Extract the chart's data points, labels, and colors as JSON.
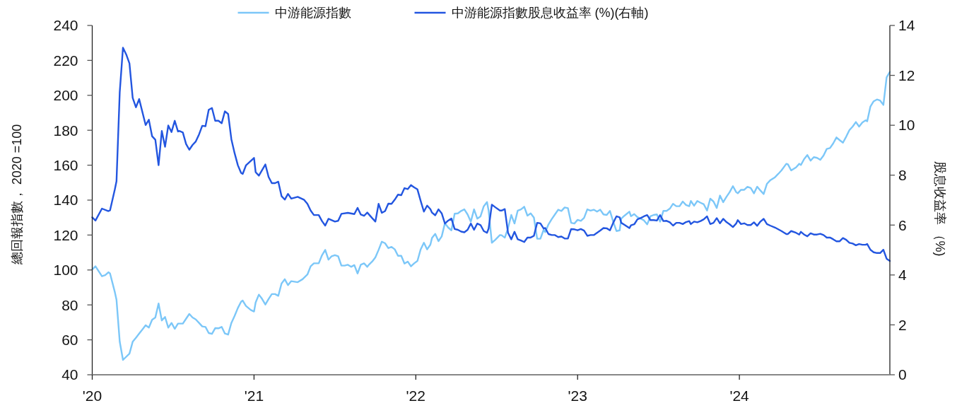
{
  "chart_data": {
    "type": "line",
    "ylabel": "總回報指數， 2020 =100",
    "y2label": "股息收益率 （%)",
    "xlim": [
      2020,
      2024.93
    ],
    "xticks": [
      {
        "value": 2020,
        "label": "'20"
      },
      {
        "value": 2021,
        "label": "'21"
      },
      {
        "value": 2022,
        "label": "'22"
      },
      {
        "value": 2023,
        "label": "'23"
      },
      {
        "value": 2024,
        "label": "'24"
      }
    ],
    "ylim": [
      40,
      240
    ],
    "yticks": [
      40,
      60,
      80,
      100,
      120,
      140,
      160,
      180,
      200,
      220,
      240
    ],
    "y2lim": [
      0,
      14
    ],
    "y2ticks": [
      0,
      2,
      4,
      6,
      8,
      10,
      12,
      14
    ],
    "legend": "top",
    "series": [
      {
        "name": "中游能源指數",
        "color": "#7cc7f8",
        "x": [
          2020.0,
          2020.02,
          2020.06,
          2020.08,
          2020.1,
          2020.11,
          2020.14,
          2020.15,
          2020.17,
          2020.19,
          2020.23,
          2020.25,
          2020.27,
          2020.29,
          2020.31,
          2020.33,
          2020.35,
          2020.37,
          2020.39,
          2020.41,
          2020.43,
          2020.45,
          2020.47,
          2020.49,
          2020.51,
          2020.53,
          2020.56,
          2020.58,
          2020.6,
          2020.62,
          2020.64,
          2020.66,
          2020.68,
          2020.7,
          2020.72,
          2020.74,
          2020.76,
          2020.78,
          2020.8,
          2020.82,
          2020.84,
          2020.86,
          2020.88,
          2020.9,
          2020.92,
          2020.93,
          2020.95,
          2020.98,
          2021.0,
          2021.01,
          2021.03,
          2021.05,
          2021.07,
          2021.09,
          2021.11,
          2021.13,
          2021.15,
          2021.17,
          2021.19,
          2021.21,
          2021.23,
          2021.27,
          2021.3,
          2021.33,
          2021.35,
          2021.37,
          2021.4,
          2021.42,
          2021.44,
          2021.46,
          2021.48,
          2021.5,
          2021.52,
          2021.54,
          2021.56,
          2021.58,
          2021.6,
          2021.62,
          2021.64,
          2021.66,
          2021.68,
          2021.7,
          2021.71,
          2021.73,
          2021.75,
          2021.77,
          2021.79,
          2021.81,
          2021.83,
          2021.85,
          2021.87,
          2021.89,
          2021.91,
          2021.93,
          2021.95,
          2021.97,
          2021.99,
          2022.01,
          2022.03,
          2022.05,
          2022.07,
          2022.09,
          2022.1,
          2022.12,
          2022.14,
          2022.16,
          2022.18,
          2022.2,
          2022.22,
          2022.24,
          2022.26,
          2022.28,
          2022.3,
          2022.32,
          2022.34,
          2022.36,
          2022.38,
          2022.4,
          2022.42,
          2022.44,
          2022.45,
          2022.47,
          2022.49,
          2022.52,
          2022.53,
          2022.55,
          2022.57,
          2022.59,
          2022.61,
          2022.63,
          2022.65,
          2022.67,
          2022.69,
          2022.71,
          2022.73,
          2022.75,
          2022.77,
          2022.79,
          2022.8,
          2022.82,
          2022.84,
          2022.86,
          2022.88,
          2022.9,
          2022.92,
          2022.94,
          2022.96,
          2022.98,
          2023.0,
          2023.02,
          2023.04,
          2023.06,
          2023.08,
          2023.1,
          2023.12,
          2023.14,
          2023.16,
          2023.18,
          2023.2,
          2023.22,
          2023.24,
          2023.26,
          2023.27,
          2023.29,
          2023.32,
          2023.33,
          2023.35,
          2023.37,
          2023.39,
          2023.41,
          2023.43,
          2023.45,
          2023.47,
          2023.49,
          2023.51,
          2023.53,
          2023.55,
          2023.57,
          2023.59,
          2023.61,
          2023.63,
          2023.65,
          2023.67,
          2023.69,
          2023.7,
          2023.72,
          2023.74,
          2023.76,
          2023.78,
          2023.8,
          2023.82,
          2023.84,
          2023.86,
          2023.88,
          2023.9,
          2023.92,
          2023.94,
          2023.96,
          2023.98,
          2023.99,
          2024.01,
          2024.03,
          2024.05,
          2024.07,
          2024.09,
          2024.11,
          2024.13,
          2024.15,
          2024.17,
          2024.19,
          2024.22,
          2024.24,
          2024.26,
          2024.29,
          2024.3,
          2024.32,
          2024.35,
          2024.37,
          2024.38,
          2024.4,
          2024.42,
          2024.44,
          2024.46,
          2024.48,
          2024.5,
          2024.52,
          2024.54,
          2024.56,
          2024.58,
          2024.6,
          2024.62,
          2024.64,
          2024.66,
          2024.68,
          2024.7,
          2024.72,
          2024.74,
          2024.76,
          2024.78,
          2024.79,
          2024.81,
          2024.83,
          2024.85,
          2024.87,
          2024.89,
          2024.91,
          2024.93
        ],
        "values": [
          100.3,
          102.1,
          96.4,
          97.0,
          98.7,
          98.0,
          87.2,
          82.9,
          58.9,
          48.5,
          52.1,
          58.9,
          61.2,
          63.6,
          65.9,
          68.3,
          67.0,
          71.5,
          72.8,
          80.8,
          71.1,
          73.1,
          67.0,
          69.7,
          66.3,
          69.3,
          69.3,
          72.1,
          74.8,
          72.8,
          71.7,
          69.7,
          67.7,
          67.4,
          63.9,
          63.4,
          66.7,
          66.6,
          67.4,
          63.6,
          63.0,
          69.7,
          73.7,
          78.2,
          81.8,
          82.5,
          79.4,
          77.1,
          76.2,
          81.4,
          85.9,
          83.4,
          80.2,
          83.4,
          86.2,
          86.2,
          85.2,
          92.2,
          94.7,
          91.3,
          93.6,
          93.0,
          94.7,
          97.4,
          102.1,
          103.8,
          103.8,
          108.4,
          111.5,
          105.9,
          107.9,
          108.5,
          107.9,
          102.5,
          102.5,
          103.0,
          101.8,
          102.8,
          98.0,
          103.0,
          103.8,
          101.8,
          103.0,
          104.8,
          107.2,
          111.5,
          116.2,
          115.3,
          112.5,
          113.2,
          111.8,
          108.1,
          108.1,
          103.7,
          104.8,
          102.1,
          103.8,
          105.2,
          111.8,
          115.6,
          111.8,
          114.5,
          118.3,
          120.7,
          116.5,
          119.2,
          126.8,
          124.3,
          122.7,
          132.2,
          132.4,
          133.8,
          134.7,
          131.8,
          127.7,
          134.7,
          129.4,
          130.7,
          136.5,
          138.9,
          134.0,
          115.6,
          117.2,
          120.0,
          119.9,
          118.5,
          123.9,
          131.5,
          126.6,
          134.0,
          134.7,
          136.2,
          131.1,
          132.4,
          130.0,
          117.9,
          117.9,
          123.0,
          121.7,
          126.1,
          129.1,
          131.8,
          134.5,
          133.8,
          135.8,
          135.4,
          127.0,
          126.6,
          128.7,
          128.1,
          129.8,
          134.7,
          134.0,
          134.5,
          133.4,
          134.5,
          131.8,
          131.5,
          133.8,
          127.7,
          122.3,
          122.7,
          129.4,
          131.1,
          133.4,
          130.8,
          132.0,
          130.2,
          129.4,
          128.4,
          126.1,
          130.7,
          131.5,
          131.8,
          127.7,
          133.8,
          133.8,
          135.1,
          137.9,
          136.5,
          136.5,
          139.2,
          137.2,
          136.5,
          139.5,
          136.8,
          139.5,
          138.5,
          137.6,
          134.0,
          140.8,
          139.2,
          135.5,
          142.6,
          138.8,
          141.9,
          144.6,
          148.0,
          144.6,
          143.9,
          145.9,
          145.9,
          147.6,
          146.9,
          143.9,
          147.7,
          145.5,
          143.5,
          149.3,
          151.3,
          153.1,
          155.0,
          157.0,
          160.8,
          160.5,
          157.0,
          158.7,
          160.8,
          160.1,
          163.5,
          165.8,
          162.6,
          164.6,
          164.2,
          163.1,
          165.5,
          169.3,
          169.8,
          172.5,
          175.9,
          174.3,
          172.9,
          176.3,
          180.1,
          182.1,
          184.7,
          182.1,
          184.4,
          185.7,
          185.1,
          193.6,
          196.6,
          197.6,
          197.0,
          194.5,
          210.3,
          213.4
        ]
      },
      {
        "name": "中游能源指數股息收益率 (%)(右軸)",
        "color": "#2356e0",
        "axis": "y2",
        "x": [
          2020.0,
          2020.02,
          2020.06,
          2020.1,
          2020.11,
          2020.14,
          2020.15,
          2020.17,
          2020.19,
          2020.21,
          2020.23,
          2020.25,
          2020.27,
          2020.29,
          2020.33,
          2020.35,
          2020.37,
          2020.39,
          2020.41,
          2020.43,
          2020.45,
          2020.47,
          2020.49,
          2020.51,
          2020.53,
          2020.54,
          2020.56,
          2020.58,
          2020.6,
          2020.62,
          2020.64,
          2020.66,
          2020.68,
          2020.7,
          2020.72,
          2020.74,
          2020.76,
          2020.78,
          2020.8,
          2020.82,
          2020.84,
          2020.86,
          2020.88,
          2020.9,
          2020.92,
          2020.93,
          2020.95,
          2021.0,
          2021.01,
          2021.03,
          2021.07,
          2021.09,
          2021.11,
          2021.13,
          2021.15,
          2021.17,
          2021.19,
          2021.21,
          2021.23,
          2021.27,
          2021.31,
          2021.33,
          2021.35,
          2021.37,
          2021.4,
          2021.42,
          2021.44,
          2021.46,
          2021.5,
          2021.52,
          2021.54,
          2021.58,
          2021.62,
          2021.64,
          2021.66,
          2021.68,
          2021.7,
          2021.73,
          2021.75,
          2021.77,
          2021.79,
          2021.81,
          2021.83,
          2021.85,
          2021.87,
          2021.89,
          2021.91,
          2021.93,
          2021.95,
          2021.97,
          2021.99,
          2022.01,
          2022.03,
          2022.05,
          2022.07,
          2022.09,
          2022.1,
          2022.12,
          2022.14,
          2022.16,
          2022.18,
          2022.2,
          2022.22,
          2022.24,
          2022.26,
          2022.28,
          2022.3,
          2022.32,
          2022.34,
          2022.36,
          2022.38,
          2022.4,
          2022.42,
          2022.44,
          2022.45,
          2022.47,
          2022.49,
          2022.52,
          2022.53,
          2022.55,
          2022.57,
          2022.59,
          2022.61,
          2022.63,
          2022.65,
          2022.67,
          2022.69,
          2022.71,
          2022.73,
          2022.75,
          2022.77,
          2022.79,
          2022.8,
          2022.82,
          2022.84,
          2022.86,
          2022.88,
          2022.9,
          2022.92,
          2022.94,
          2022.96,
          2022.98,
          2023.0,
          2023.02,
          2023.04,
          2023.06,
          2023.08,
          2023.1,
          2023.12,
          2023.14,
          2023.16,
          2023.18,
          2023.2,
          2023.22,
          2023.24,
          2023.26,
          2023.27,
          2023.29,
          2023.32,
          2023.33,
          2023.35,
          2023.37,
          2023.39,
          2023.41,
          2023.43,
          2023.45,
          2023.47,
          2023.49,
          2023.51,
          2023.53,
          2023.55,
          2023.57,
          2023.59,
          2023.61,
          2023.63,
          2023.65,
          2023.67,
          2023.69,
          2023.7,
          2023.72,
          2023.74,
          2023.76,
          2023.78,
          2023.8,
          2023.82,
          2023.84,
          2023.86,
          2023.88,
          2023.9,
          2023.92,
          2023.94,
          2023.96,
          2023.98,
          2023.99,
          2024.01,
          2024.03,
          2024.05,
          2024.07,
          2024.09,
          2024.11,
          2024.13,
          2024.15,
          2024.17,
          2024.19,
          2024.22,
          2024.24,
          2024.26,
          2024.29,
          2024.3,
          2024.32,
          2024.35,
          2024.37,
          2024.38,
          2024.4,
          2024.42,
          2024.44,
          2024.46,
          2024.48,
          2024.5,
          2024.52,
          2024.54,
          2024.56,
          2024.58,
          2024.6,
          2024.62,
          2024.64,
          2024.66,
          2024.68,
          2024.7,
          2024.72,
          2024.74,
          2024.76,
          2024.78,
          2024.79,
          2024.81,
          2024.83,
          2024.85,
          2024.87,
          2024.89,
          2024.91,
          2024.93
        ],
        "values": [
          6.31,
          6.18,
          6.66,
          6.56,
          6.59,
          7.44,
          7.76,
          11.33,
          13.11,
          12.84,
          12.48,
          11.1,
          10.72,
          11.05,
          10.01,
          10.22,
          9.56,
          9.42,
          8.4,
          9.77,
          9.14,
          9.99,
          9.73,
          10.18,
          9.75,
          9.77,
          9.71,
          9.25,
          9.02,
          9.21,
          9.35,
          9.63,
          9.98,
          9.96,
          10.62,
          10.69,
          10.18,
          10.18,
          10.08,
          10.56,
          10.45,
          9.44,
          8.88,
          8.4,
          8.09,
          8.05,
          8.39,
          8.69,
          8.12,
          7.98,
          8.43,
          7.93,
          7.68,
          7.68,
          7.74,
          7.16,
          7.02,
          7.25,
          7.06,
          7.13,
          7.01,
          6.85,
          6.58,
          6.4,
          6.4,
          6.16,
          5.98,
          6.25,
          6.14,
          6.17,
          6.45,
          6.49,
          6.44,
          6.69,
          6.42,
          6.37,
          6.5,
          6.28,
          6.14,
          6.85,
          6.49,
          6.56,
          6.86,
          6.85,
          7.02,
          7.22,
          7.2,
          7.48,
          7.44,
          7.6,
          7.51,
          7.43,
          6.97,
          6.54,
          6.78,
          6.64,
          6.5,
          6.39,
          6.63,
          6.47,
          6.06,
          6.18,
          6.26,
          5.84,
          5.81,
          5.74,
          5.71,
          5.81,
          6.06,
          5.81,
          6.06,
          6.0,
          5.76,
          5.69,
          5.86,
          6.82,
          6.72,
          6.58,
          6.58,
          6.64,
          5.69,
          5.43,
          5.73,
          5.43,
          5.38,
          5.32,
          5.5,
          5.5,
          5.57,
          6.09,
          6.07,
          5.86,
          5.88,
          5.64,
          5.6,
          5.6,
          5.52,
          5.54,
          5.46,
          5.46,
          5.84,
          5.83,
          5.79,
          5.84,
          5.78,
          5.57,
          5.6,
          5.6,
          5.69,
          5.78,
          5.88,
          5.87,
          5.79,
          6.09,
          6.35,
          6.31,
          6.09,
          6.01,
          5.88,
          5.99,
          6.03,
          6.23,
          6.28,
          6.35,
          6.4,
          6.2,
          6.2,
          6.18,
          6.4,
          6.16,
          6.17,
          6.11,
          5.98,
          6.09,
          6.09,
          6.04,
          6.12,
          6.16,
          6.04,
          6.14,
          6.11,
          6.16,
          6.23,
          6.35,
          6.04,
          6.09,
          6.28,
          6.07,
          6.25,
          6.12,
          6.03,
          5.92,
          6.06,
          6.2,
          6.04,
          6.07,
          6.0,
          6.0,
          6.11,
          5.97,
          6.14,
          6.25,
          6.04,
          5.98,
          5.9,
          5.83,
          5.76,
          5.64,
          5.64,
          5.76,
          5.69,
          5.62,
          5.73,
          5.62,
          5.55,
          5.67,
          5.62,
          5.62,
          5.65,
          5.6,
          5.5,
          5.5,
          5.43,
          5.35,
          5.35,
          5.48,
          5.41,
          5.29,
          5.26,
          5.19,
          5.24,
          5.21,
          5.21,
          5.24,
          5.01,
          4.91,
          4.88,
          4.88,
          5.01,
          4.65,
          4.56
        ]
      }
    ]
  }
}
